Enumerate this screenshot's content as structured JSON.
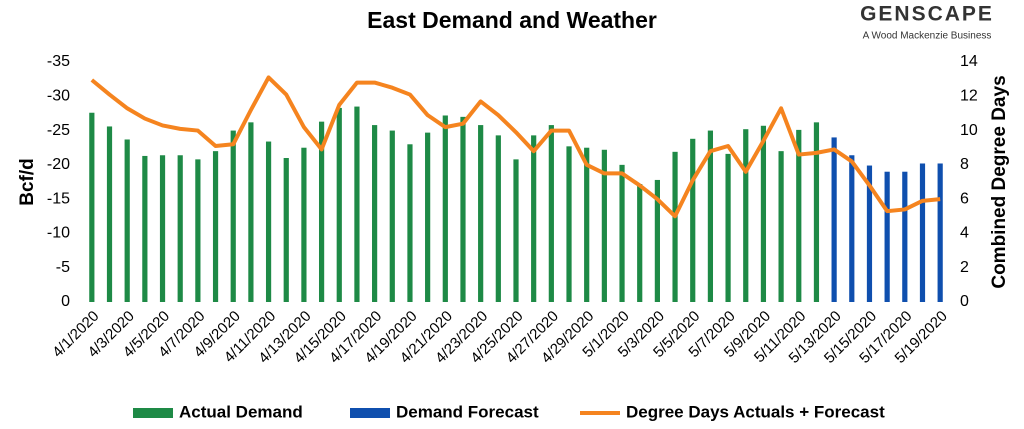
{
  "chart_data": {
    "type": "bar",
    "title": "East Demand and Weather",
    "y_label": "Bcf/d",
    "y2_label": "Combined Degree Days",
    "categories": [
      "4/1/2020",
      null,
      "4/3/2020",
      null,
      "4/5/2020",
      null,
      "4/7/2020",
      null,
      "4/9/2020",
      null,
      "4/11/2020",
      null,
      "4/13/2020",
      null,
      "4/15/2020",
      null,
      "4/17/2020",
      null,
      "4/19/2020",
      null,
      "4/21/2020",
      null,
      "4/23/2020",
      null,
      "4/25/2020",
      null,
      "4/27/2020",
      null,
      "4/29/2020",
      null,
      "5/1/2020",
      null,
      "5/3/2020",
      null,
      "5/5/2020",
      null,
      "5/7/2020",
      null,
      "5/9/2020",
      null,
      "5/11/2020",
      null,
      "5/13/2020",
      null,
      "5/15/2020",
      null,
      "5/17/2020",
      null,
      "5/19/2020"
    ],
    "series": [
      {
        "name": "Actual Demand",
        "type": "bar",
        "color": "#1e8a46",
        "values": [
          -27.6,
          -25.6,
          -23.7,
          -21.3,
          -21.4,
          -21.4,
          -20.8,
          -22.0,
          -25.0,
          -26.2,
          -23.4,
          -21.0,
          -22.5,
          -26.3,
          -28.3,
          -28.5,
          -25.8,
          -25.0,
          -23.0,
          -24.7,
          -27.2,
          -27.0,
          -25.8,
          -24.3,
          -20.8,
          -24.3,
          -25.8,
          -22.7,
          -22.5,
          -22.2,
          -20.0,
          -17.2,
          -17.8,
          -21.9,
          -23.8,
          -25.0,
          -21.6,
          -25.2,
          -25.7,
          -22.0,
          -25.1,
          -26.2,
          null,
          null,
          null,
          null,
          null,
          null,
          null
        ]
      },
      {
        "name": "Demand Forecast",
        "type": "bar",
        "color": "#0f4fae",
        "values": [
          null,
          null,
          null,
          null,
          null,
          null,
          null,
          null,
          null,
          null,
          null,
          null,
          null,
          null,
          null,
          null,
          null,
          null,
          null,
          null,
          null,
          null,
          null,
          null,
          null,
          null,
          null,
          null,
          null,
          null,
          null,
          null,
          null,
          null,
          null,
          null,
          null,
          null,
          null,
          null,
          null,
          null,
          -24.0,
          -21.4,
          -19.9,
          -19.0,
          -19.0,
          -20.2,
          -20.2
        ]
      },
      {
        "name": "Degree Days Actuals + Forecast",
        "type": "line",
        "axis": "y2",
        "color": "#f5841f",
        "values": [
          12.95,
          12.1,
          11.3,
          10.7,
          10.3,
          10.1,
          10.0,
          9.1,
          9.2,
          11.2,
          13.1,
          12.1,
          10.2,
          8.9,
          11.5,
          12.8,
          12.8,
          12.5,
          12.1,
          10.9,
          10.2,
          10.4,
          11.7,
          10.9,
          9.9,
          8.8,
          10.0,
          10.0,
          8.0,
          7.5,
          7.5,
          6.8,
          6.0,
          5.0,
          7.1,
          8.8,
          9.1,
          7.6,
          9.4,
          11.3,
          8.6,
          8.7,
          8.9,
          8.2,
          6.8,
          5.3,
          5.4,
          5.9,
          6.0
        ]
      }
    ],
    "ylim": [
      0,
      -35
    ],
    "yticks": [
      0,
      -5,
      -10,
      -15,
      -20,
      -25,
      -30,
      -35
    ],
    "y2lim": [
      0,
      14
    ],
    "y2ticks": [
      0,
      2,
      4,
      6,
      8,
      10,
      12,
      14
    ],
    "grid": false,
    "legend": "bottom"
  },
  "logo": {
    "name": "GENSCAPE",
    "tagline": "A Wood Mackenzie Business"
  }
}
